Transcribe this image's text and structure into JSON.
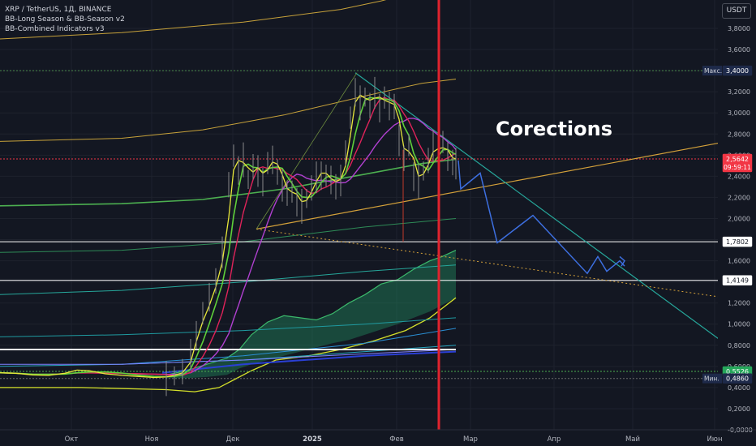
{
  "legend": {
    "symbol": "XRP / TetherUS, 1Д, BINANCE",
    "indicator_1": "BB-Long Season & BB-Season v2",
    "indicator_2": "BB-Combined Indicators v3"
  },
  "currency_button": "USDT",
  "annotation": "Corections",
  "colors": {
    "background": "#131722",
    "marker_line": "#e0232e",
    "projection": "#3d6fe0",
    "current_price": "#f23645"
  },
  "chart_data": {
    "type": "line",
    "y_axis": {
      "min": -0.1,
      "max": 4.1,
      "ticks": [
        "3,8000",
        "3,6000",
        "3,4000",
        "3,2000",
        "3,0000",
        "2,8000",
        "2,6000",
        "2,4000",
        "2,2000",
        "2,0000",
        "1,8000",
        "1,6000",
        "1,4000",
        "1,2000",
        "1,0000",
        "0,8000",
        "0,6000",
        "0,4000",
        "0,2000",
        "-0,0000"
      ],
      "tick_values": [
        3.8,
        3.6,
        3.4,
        3.2,
        3.0,
        2.8,
        2.6,
        2.4,
        2.2,
        2.0,
        1.8,
        1.6,
        1.4,
        1.2,
        1.0,
        0.8,
        0.6,
        0.4,
        0.2,
        0.0
      ]
    },
    "x_axis": {
      "labels": [
        "Окт",
        "Ноя",
        "Дек",
        "2025",
        "Фев",
        "Мар",
        "Апр",
        "Май",
        "Июн"
      ]
    },
    "price_labels": [
      {
        "prefix": "Макс.",
        "text": "3,4000",
        "value": 3.4,
        "style": "max"
      },
      {
        "prefix": "",
        "text": "2,5642",
        "value": 2.5642,
        "timer": "09:59:11",
        "style": "current"
      },
      {
        "prefix": "",
        "text": "1,7802",
        "value": 1.7802,
        "style": "level"
      },
      {
        "prefix": "",
        "text": "1,4149",
        "value": 1.4149,
        "style": "level"
      },
      {
        "prefix": "",
        "text": "0,5526",
        "value": 0.5526,
        "style": "green"
      },
      {
        "prefix": "Мин.",
        "text": "0,4860",
        "value": 0.486,
        "style": "min"
      }
    ],
    "horizontal_levels": [
      1.7802,
      1.4149,
      0.76
    ],
    "price_series": [
      [
        0,
        0.54
      ],
      [
        20,
        0.53
      ],
      [
        40,
        0.51
      ],
      [
        60,
        0.52
      ],
      [
        80,
        0.55
      ],
      [
        95,
        0.58
      ],
      [
        110,
        0.54
      ],
      [
        130,
        0.52
      ],
      [
        150,
        0.51
      ],
      [
        170,
        0.5
      ],
      [
        190,
        0.49
      ],
      [
        205,
        0.51
      ],
      [
        215,
        0.52
      ],
      [
        225,
        0.56
      ],
      [
        235,
        0.72
      ],
      [
        242,
        0.95
      ],
      [
        250,
        1.1
      ],
      [
        258,
        1.25
      ],
      [
        266,
        1.45
      ],
      [
        274,
        1.72
      ],
      [
        282,
        2.3
      ],
      [
        288,
        2.62
      ],
      [
        294,
        2.48
      ],
      [
        300,
        2.58
      ],
      [
        306,
        2.38
      ],
      [
        312,
        2.5
      ],
      [
        318,
        2.46
      ],
      [
        324,
        2.4
      ],
      [
        330,
        2.52
      ],
      [
        336,
        2.55
      ],
      [
        342,
        2.48
      ],
      [
        348,
        2.35
      ],
      [
        354,
        2.22
      ],
      [
        360,
        2.28
      ],
      [
        366,
        2.18
      ],
      [
        372,
        2.14
      ],
      [
        378,
        2.2
      ],
      [
        384,
        2.3
      ],
      [
        390,
        2.4
      ],
      [
        396,
        2.46
      ],
      [
        402,
        2.4
      ],
      [
        408,
        2.36
      ],
      [
        414,
        2.34
      ],
      [
        420,
        2.4
      ],
      [
        426,
        2.6
      ],
      [
        432,
        2.98
      ],
      [
        438,
        3.22
      ],
      [
        444,
        3.12
      ],
      [
        450,
        3.16
      ],
      [
        456,
        3.08
      ],
      [
        462,
        3.2
      ],
      [
        468,
        3.1
      ],
      [
        474,
        3.14
      ],
      [
        480,
        3.06
      ],
      [
        486,
        3.1
      ],
      [
        492,
        2.78
      ],
      [
        498,
        2.55
      ],
      [
        504,
        2.72
      ],
      [
        510,
        2.42
      ],
      [
        516,
        2.38
      ],
      [
        522,
        2.46
      ],
      [
        528,
        2.56
      ],
      [
        534,
        2.7
      ],
      [
        540,
        2.62
      ],
      [
        546,
        2.72
      ],
      [
        552,
        2.58
      ],
      [
        558,
        2.57
      ],
      [
        562,
        2.56
      ]
    ],
    "projection_path": [
      [
        565,
        2.55
      ],
      [
        568,
        2.28
      ],
      [
        592,
        2.43
      ],
      [
        613,
        1.77
      ],
      [
        657,
        2.03
      ],
      [
        724,
        1.48
      ],
      [
        737,
        1.64
      ],
      [
        748,
        1.5
      ],
      [
        764,
        1.6
      ],
      [
        770,
        1.55
      ]
    ],
    "vertical_marker_x_label": "Фев"
  }
}
